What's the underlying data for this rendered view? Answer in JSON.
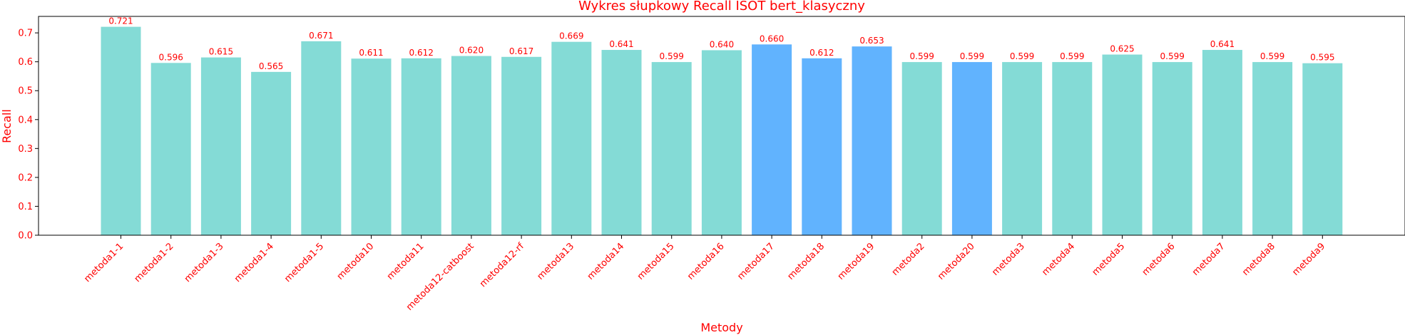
{
  "chart_data": {
    "type": "bar",
    "title": "Wykres słupkowy Recall ISOT bert_klasyczny",
    "xlabel": "Metody",
    "ylabel": "Recall",
    "ylim": [
      0,
      0.757
    ],
    "yticks": [
      "0.0",
      "0.1",
      "0.2",
      "0.3",
      "0.4",
      "0.5",
      "0.6",
      "0.7"
    ],
    "grid": false,
    "categories": [
      "metoda1-1",
      "metoda1-2",
      "metoda1-3",
      "metoda1-4",
      "metoda1-5",
      "metoda10",
      "metoda11",
      "metoda12-catboost",
      "metoda12-rf",
      "metoda13",
      "metoda14",
      "metoda15",
      "metoda16",
      "metoda17",
      "metoda18",
      "metoda19",
      "metoda2",
      "metoda20",
      "metoda3",
      "metoda4",
      "metoda5",
      "metoda6",
      "metoda7",
      "metoda8",
      "metoda9"
    ],
    "values": [
      0.721,
      0.596,
      0.615,
      0.565,
      0.671,
      0.611,
      0.612,
      0.62,
      0.617,
      0.669,
      0.641,
      0.599,
      0.64,
      0.66,
      0.612,
      0.653,
      0.599,
      0.599,
      0.599,
      0.599,
      0.625,
      0.599,
      0.641,
      0.599,
      0.595
    ],
    "value_labels": [
      "0.721",
      "0.596",
      "0.615",
      "0.565",
      "0.671",
      "0.611",
      "0.612",
      "0.620",
      "0.617",
      "0.669",
      "0.641",
      "0.599",
      "0.640",
      "0.660",
      "0.612",
      "0.653",
      "0.599",
      "0.599",
      "0.599",
      "0.599",
      "0.625",
      "0.599",
      "0.641",
      "0.599",
      "0.595"
    ],
    "highlighted": [
      false,
      false,
      false,
      false,
      false,
      false,
      false,
      false,
      false,
      false,
      false,
      false,
      false,
      true,
      true,
      true,
      false,
      true,
      false,
      false,
      false,
      false,
      false,
      false,
      false
    ],
    "colors": {
      "bar": "#84dbd6",
      "bar_highlight": "#61b3fe",
      "text": "#ff0000",
      "axis": "#000000"
    }
  }
}
